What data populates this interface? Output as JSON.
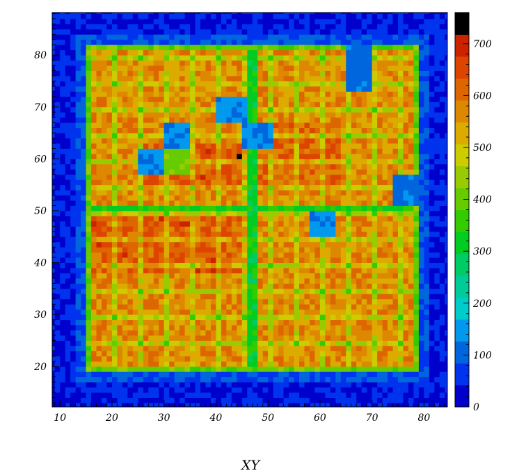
{
  "chart_data": {
    "type": "heatmap",
    "title": "",
    "xlabel": "XY",
    "ylabel": "",
    "xlim": [
      8.5,
      84.5
    ],
    "ylim": [
      12.2,
      88.2
    ],
    "x_ticks": [
      10,
      20,
      30,
      40,
      50,
      60,
      70,
      80
    ],
    "y_ticks": [
      20,
      30,
      40,
      50,
      60,
      70,
      80
    ],
    "colorbar": {
      "min": 0,
      "max": 760,
      "ticks": [
        0,
        100,
        200,
        300,
        400,
        500,
        600,
        700
      ],
      "colors": [
        "#0000cc",
        "#0033ee",
        "#0066dd",
        "#0099ee",
        "#00cccc",
        "#00cc99",
        "#00cc66",
        "#00cc22",
        "#33cc00",
        "#66cc00",
        "#99cc00",
        "#cccc00",
        "#ddaa00",
        "#dd8800",
        "#dd6600",
        "#dd4400",
        "#cc2200",
        "#000000"
      ]
    },
    "regions": {
      "background_value": 40,
      "active_x": [
        15,
        79
      ],
      "active_y": [
        19,
        82
      ],
      "active_value": 600,
      "hot_regions": [
        {
          "x": [
            26,
            46
          ],
          "y": [
            54,
            63
          ],
          "value": 660
        },
        {
          "x": [
            15,
            46
          ],
          "y": [
            38,
            49
          ],
          "value": 660
        },
        {
          "x": [
            48,
            64
          ],
          "y": [
            54,
            67
          ],
          "value": 650
        }
      ],
      "low_blocks": [
        {
          "x": [
            30,
            35
          ],
          "y": [
            62,
            67
          ],
          "value": 120
        },
        {
          "x": [
            25,
            30
          ],
          "y": [
            57,
            62
          ],
          "value": 120
        },
        {
          "x": [
            40,
            46
          ],
          "y": [
            67,
            72
          ],
          "value": 120
        },
        {
          "x": [
            45,
            51
          ],
          "y": [
            62,
            67
          ],
          "value": 120
        },
        {
          "x": [
            58,
            63
          ],
          "y": [
            45,
            50
          ],
          "value": 120
        },
        {
          "x": [
            74,
            79
          ],
          "y": [
            51,
            57
          ],
          "value": 100
        },
        {
          "x": [
            65,
            70
          ],
          "y": [
            73,
            82
          ],
          "value": 100
        }
      ],
      "green_blocks": [
        {
          "x": [
            30,
            35
          ],
          "y": [
            57,
            62
          ],
          "value": 420
        }
      ],
      "gap_lines_x": [
        46.5,
        47.5
      ],
      "gap_lines_y": [
        50.5
      ],
      "hot_pixel": {
        "x": 44,
        "y": 60,
        "value": 760
      }
    }
  }
}
